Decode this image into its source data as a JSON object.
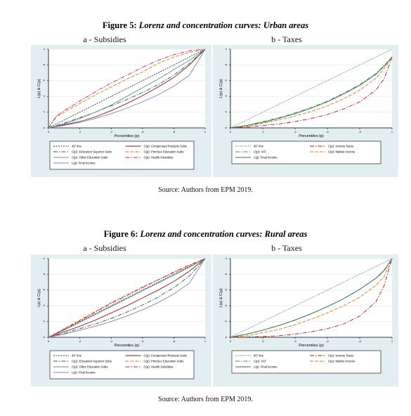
{
  "figures": [
    {
      "number": "Figure 5:",
      "title": "Lorenz and concentration curves: Urban areas",
      "source": "Source: Authors from EPM 2019.",
      "panel_a_label": "a - Subsidies",
      "panel_b_label": "b - Taxes"
    },
    {
      "number": "Figure 6:",
      "title": "Lorenz and concentration curves: Rural areas",
      "source": "Source: Authors from EPM 2019.",
      "panel_a_label": "a - Subsidies",
      "panel_b_label": "b - Taxes"
    }
  ],
  "chart_data": [
    {
      "type": "line",
      "xlabel": "Percentiles (p)",
      "ylabel": "L(p) & C(p)",
      "xticks": [
        "0",
        ".2",
        ".4",
        ".6",
        ".8",
        "1"
      ],
      "yticks": [
        "0",
        ".2",
        ".4",
        ".6",
        ".8",
        "1"
      ],
      "xlim": [
        0,
        1
      ],
      "ylim": [
        0,
        1
      ],
      "legend_placement": "bottom",
      "series": [
        {
          "name": "45° line",
          "color": "#333333",
          "dash": "2,1.5",
          "x": [
            0,
            1
          ],
          "y": [
            0,
            1
          ]
        },
        {
          "name": "C(p): Compensed Products Subs",
          "color": "#8b1a1a",
          "dash": "",
          "x": [
            0,
            0.1,
            0.2,
            0.3,
            0.4,
            0.5,
            0.6,
            0.7,
            0.8,
            0.9,
            1
          ],
          "y": [
            0,
            0.04,
            0.08,
            0.14,
            0.22,
            0.31,
            0.41,
            0.52,
            0.64,
            0.8,
            1
          ]
        },
        {
          "name": "C(p): Education Superior Subs",
          "color": "#2e5e2e",
          "dash": "6,2,1.5,2",
          "x": [
            0,
            0.1,
            0.2,
            0.3,
            0.4,
            0.5,
            0.6,
            0.7,
            0.8,
            0.9,
            1
          ],
          "y": [
            0,
            0.06,
            0.13,
            0.2,
            0.28,
            0.36,
            0.45,
            0.55,
            0.67,
            0.82,
            1
          ]
        },
        {
          "name": "C(p): PrimSec Education Subs",
          "color": "#e07a10",
          "dash": "5,2",
          "x": [
            0,
            0.05,
            0.1,
            0.2,
            0.3,
            0.4,
            0.5,
            0.6,
            0.7,
            0.8,
            0.9,
            1
          ],
          "y": [
            0,
            0.14,
            0.2,
            0.31,
            0.42,
            0.52,
            0.62,
            0.71,
            0.82,
            0.9,
            0.96,
            1
          ]
        },
        {
          "name": "C(p): Other Education Subs",
          "color": "#5f8f9f",
          "dash": "",
          "x": [
            0,
            0.1,
            0.2,
            0.3,
            0.4,
            0.5,
            0.6,
            0.7,
            0.8,
            0.9,
            1
          ],
          "y": [
            0,
            0.05,
            0.12,
            0.2,
            0.29,
            0.4,
            0.51,
            0.62,
            0.74,
            0.86,
            1
          ]
        },
        {
          "name": "C(p): Health Subsidies",
          "color": "#c41e5a",
          "dash": "6,2,1.5,2",
          "x": [
            0,
            0.05,
            0.1,
            0.2,
            0.3,
            0.4,
            0.5,
            0.6,
            0.7,
            0.8,
            0.9,
            1
          ],
          "y": [
            0,
            0.15,
            0.22,
            0.34,
            0.46,
            0.57,
            0.67,
            0.77,
            0.86,
            0.93,
            0.98,
            1
          ]
        },
        {
          "name": "L(p): Final Income",
          "color": "#8080c8",
          "dash": "",
          "x": [
            0,
            0.1,
            0.2,
            0.3,
            0.4,
            0.5,
            0.6,
            0.7,
            0.8,
            0.9,
            1
          ],
          "y": [
            0,
            0.03,
            0.07,
            0.12,
            0.18,
            0.25,
            0.33,
            0.42,
            0.53,
            0.67,
            1
          ]
        }
      ]
    },
    {
      "type": "line",
      "xlabel": "Percentiles (p)",
      "ylabel": "L(p) & C(p)",
      "xticks": [
        "0",
        ".2",
        ".4",
        ".6",
        ".8",
        "1"
      ],
      "yticks": [
        "0",
        ".2",
        ".4",
        ".6",
        ".8",
        "1"
      ],
      "xlim": [
        0,
        1
      ],
      "ylim": [
        0,
        1
      ],
      "legend_placement": "bottom",
      "series": [
        {
          "name": "45° line",
          "color": "#6d8fa0",
          "dash": "2,1.5",
          "x": [
            0,
            1
          ],
          "y": [
            0,
            1
          ]
        },
        {
          "name": "C(p): Income Taxes",
          "color": "#a01a1a",
          "dash": "6,2,1.5,2",
          "x": [
            0,
            0.1,
            0.2,
            0.3,
            0.4,
            0.5,
            0.6,
            0.7,
            0.8,
            0.9,
            0.95,
            1
          ],
          "y": [
            0,
            0.01,
            0.03,
            0.05,
            0.08,
            0.12,
            0.17,
            0.24,
            0.33,
            0.48,
            0.62,
            0.9
          ]
        },
        {
          "name": "C(p): VAT",
          "color": "#4a8a4a",
          "dash": "6,2,1.5,2",
          "x": [
            0,
            0.1,
            0.2,
            0.3,
            0.4,
            0.5,
            0.6,
            0.7,
            0.8,
            0.9,
            0.95,
            1
          ],
          "y": [
            0,
            0.03,
            0.08,
            0.13,
            0.19,
            0.26,
            0.34,
            0.44,
            0.55,
            0.69,
            0.79,
            0.9
          ]
        },
        {
          "name": "C(p): Market Income",
          "color": "#e07a10",
          "dash": "5,2",
          "x": [
            0,
            0.1,
            0.2,
            0.3,
            0.4,
            0.5,
            0.6,
            0.7,
            0.8,
            0.9,
            0.95,
            1
          ],
          "y": [
            0,
            0.02,
            0.06,
            0.1,
            0.15,
            0.21,
            0.28,
            0.37,
            0.48,
            0.63,
            0.75,
            0.9
          ]
        },
        {
          "name": "L(p): Final Income",
          "color": "#2e6e5e",
          "dash": "",
          "x": [
            0,
            0.1,
            0.2,
            0.3,
            0.4,
            0.5,
            0.6,
            0.7,
            0.8,
            0.9,
            0.95,
            1
          ],
          "y": [
            0,
            0.03,
            0.07,
            0.12,
            0.18,
            0.25,
            0.33,
            0.43,
            0.54,
            0.68,
            0.78,
            0.9
          ]
        }
      ]
    },
    {
      "type": "line",
      "xlabel": "Percentiles (p)",
      "ylabel": "Lp) & C(p)",
      "xticks": [
        "0",
        ".2",
        ".4",
        ".6",
        ".8",
        "1"
      ],
      "yticks": [
        "0",
        ".2",
        ".4",
        ".6",
        ".8",
        "1"
      ],
      "xlim": [
        0,
        1
      ],
      "ylim": [
        0,
        1
      ],
      "legend_placement": "bottom",
      "series": [
        {
          "name": "45° line",
          "color": "#333333",
          "dash": "2,1.5",
          "x": [
            0,
            1
          ],
          "y": [
            0,
            1
          ]
        },
        {
          "name": "C(p): Compensed Products Subs",
          "color": "#8b1a1a",
          "dash": "",
          "x": [
            0,
            0.1,
            0.2,
            0.3,
            0.4,
            0.5,
            0.6,
            0.7,
            0.8,
            0.9,
            1
          ],
          "y": [
            0,
            0.07,
            0.14,
            0.22,
            0.31,
            0.4,
            0.5,
            0.6,
            0.71,
            0.84,
            1
          ]
        },
        {
          "name": "C(p): Education Superior Subs",
          "color": "#2e5e2e",
          "dash": "6,2,1.5,2",
          "x": [
            0,
            0.1,
            0.2,
            0.3,
            0.4,
            0.5,
            0.6,
            0.7,
            0.8,
            0.9,
            1
          ],
          "y": [
            0,
            0.05,
            0.11,
            0.17,
            0.24,
            0.32,
            0.41,
            0.51,
            0.63,
            0.78,
            1
          ]
        },
        {
          "name": "C(p): PrimSec Education Subs",
          "color": "#e07a10",
          "dash": "5,2",
          "x": [
            0,
            0.1,
            0.2,
            0.3,
            0.4,
            0.5,
            0.6,
            0.7,
            0.8,
            0.9,
            1
          ],
          "y": [
            0,
            0.11,
            0.22,
            0.33,
            0.44,
            0.54,
            0.64,
            0.73,
            0.82,
            0.91,
            1
          ]
        },
        {
          "name": "C(p): Other Education Subs",
          "color": "#5f8f9f",
          "dash": "",
          "x": [
            0,
            0.1,
            0.2,
            0.3,
            0.4,
            0.5,
            0.6,
            0.7,
            0.8,
            0.9,
            1
          ],
          "y": [
            0,
            0.09,
            0.19,
            0.29,
            0.39,
            0.49,
            0.59,
            0.69,
            0.79,
            0.89,
            1
          ]
        },
        {
          "name": "C(p): Health Subsidies",
          "color": "#c41e5a",
          "dash": "6,2,1.5,2",
          "x": [
            0,
            0.1,
            0.2,
            0.3,
            0.4,
            0.5,
            0.6,
            0.7,
            0.8,
            0.9,
            1
          ],
          "y": [
            0,
            0.1,
            0.21,
            0.32,
            0.43,
            0.53,
            0.63,
            0.73,
            0.83,
            0.92,
            1
          ]
        },
        {
          "name": "L(p): Final Income",
          "color": "#8080c8",
          "dash": "",
          "x": [
            0,
            0.1,
            0.2,
            0.3,
            0.4,
            0.5,
            0.6,
            0.7,
            0.8,
            0.9,
            1
          ],
          "y": [
            0,
            0.04,
            0.09,
            0.14,
            0.2,
            0.27,
            0.35,
            0.44,
            0.55,
            0.69,
            1
          ]
        }
      ]
    },
    {
      "type": "line",
      "xlabel": "Percentiles (p)",
      "ylabel": "L(p) & C(p)",
      "xticks": [
        "0",
        ".2",
        ".4",
        ".6",
        ".8",
        "1"
      ],
      "yticks": [
        "0",
        ".2",
        ".4",
        ".6",
        ".8",
        "1"
      ],
      "xlim": [
        0,
        1
      ],
      "ylim": [
        0,
        1
      ],
      "legend_placement": "bottom",
      "series": [
        {
          "name": "45° line",
          "color": "#6d8fa0",
          "dash": "2,1.5",
          "x": [
            0,
            1
          ],
          "y": [
            0,
            1
          ]
        },
        {
          "name": "C(p): Income Taxes",
          "color": "#a01a1a",
          "dash": "6,2,1.5,2",
          "x": [
            0,
            0.1,
            0.2,
            0.3,
            0.4,
            0.5,
            0.6,
            0.7,
            0.8,
            0.9,
            0.95,
            1
          ],
          "y": [
            0,
            0.003,
            0.01,
            0.02,
            0.04,
            0.07,
            0.11,
            0.17,
            0.27,
            0.45,
            0.65,
            1
          ]
        },
        {
          "name": "C(p): VAT",
          "color": "#4a8a4a",
          "dash": "6,2,1.5,2",
          "x": [
            0,
            0.1,
            0.2,
            0.3,
            0.4,
            0.5,
            0.6,
            0.7,
            0.8,
            0.9,
            0.95,
            1
          ],
          "y": [
            0,
            0.04,
            0.09,
            0.15,
            0.22,
            0.3,
            0.39,
            0.49,
            0.61,
            0.75,
            0.84,
            1
          ]
        },
        {
          "name": "C(p): Market Income",
          "color": "#e07a10",
          "dash": "5,2",
          "x": [
            0,
            0.1,
            0.2,
            0.3,
            0.4,
            0.5,
            0.6,
            0.7,
            0.8,
            0.9,
            0.95,
            1
          ],
          "y": [
            0,
            0.02,
            0.06,
            0.1,
            0.16,
            0.23,
            0.31,
            0.4,
            0.51,
            0.66,
            0.77,
            1
          ]
        },
        {
          "name": "L(p): Final Income",
          "color": "#2e6e5e",
          "dash": "",
          "x": [
            0,
            0.1,
            0.2,
            0.3,
            0.4,
            0.5,
            0.6,
            0.7,
            0.8,
            0.9,
            0.95,
            1
          ],
          "y": [
            0,
            0.04,
            0.09,
            0.15,
            0.22,
            0.3,
            0.39,
            0.49,
            0.61,
            0.75,
            0.85,
            1
          ]
        }
      ]
    }
  ]
}
